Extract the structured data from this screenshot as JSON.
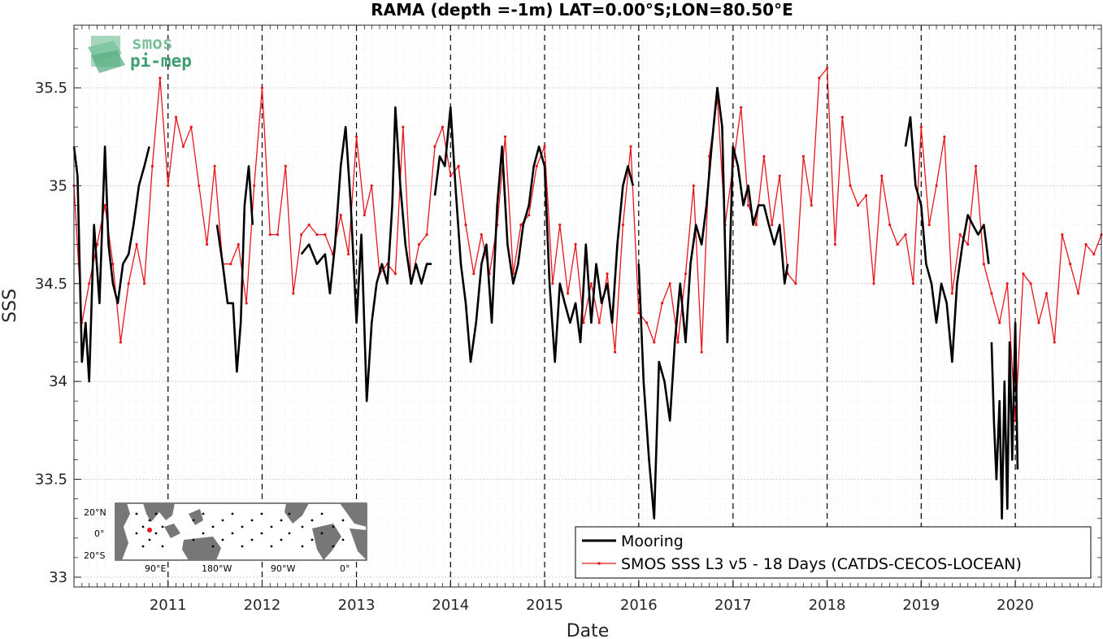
{
  "chart_data": {
    "type": "line",
    "title": "RAMA (depth =-1m) LAT=0.00°S;LON=80.50°E",
    "xlabel": "Date",
    "ylabel": "SSS",
    "xlim": [
      "2010-01-01",
      "2020-11-30"
    ],
    "ylim": [
      32.95,
      35.82
    ],
    "x_ticks": [
      "2011",
      "2012",
      "2013",
      "2014",
      "2015",
      "2016",
      "2017",
      "2018",
      "2019",
      "2020"
    ],
    "y_ticks": [
      "33",
      "33.5",
      "34",
      "34.5",
      "35",
      "35.5"
    ],
    "grid": true,
    "minor_grid": true,
    "year_boundaries_dashed": true,
    "legend_position": "bottom-right",
    "series": [
      {
        "name": "Mooring",
        "color": "#000000",
        "style": "thick-line",
        "segments": [
          {
            "x": [
              "2010-01-01",
              "2010-01-15",
              "2010-02-01",
              "2010-02-15",
              "2010-03-01",
              "2010-03-20",
              "2010-04-10",
              "2010-05-01",
              "2010-05-15",
              "2010-06-01",
              "2010-06-20",
              "2010-07-10",
              "2010-08-01",
              "2010-08-20",
              "2010-09-10",
              "2010-10-01",
              "2010-10-20"
            ],
            "y": [
              35.2,
              35.05,
              34.1,
              34.3,
              34.0,
              34.8,
              34.4,
              35.2,
              34.7,
              34.5,
              34.4,
              34.6,
              34.65,
              34.8,
              35.0,
              35.1,
              35.2
            ]
          },
          {
            "x": [
              "2011-07-10",
              "2011-08-01",
              "2011-08-20",
              "2011-09-10",
              "2011-09-25",
              "2011-10-10",
              "2011-10-25",
              "2011-11-10",
              "2011-11-25"
            ],
            "y": [
              34.8,
              34.6,
              34.4,
              34.4,
              34.05,
              34.3,
              34.9,
              35.1,
              34.8
            ]
          },
          {
            "x": [
              "2012-06-01",
              "2012-07-01",
              "2012-08-01",
              "2012-09-01",
              "2012-09-20",
              "2012-10-10",
              "2012-11-01",
              "2012-11-20",
              "2012-12-10",
              "2013-01-01",
              "2013-01-20",
              "2013-02-10",
              "2013-03-01",
              "2013-03-20",
              "2013-04-10",
              "2013-05-01",
              "2013-05-20",
              "2013-06-01",
              "2013-06-20",
              "2013-07-10",
              "2013-08-01",
              "2013-08-20",
              "2013-09-10",
              "2013-10-01",
              "2013-10-20"
            ],
            "y": [
              34.65,
              34.7,
              34.6,
              34.65,
              34.45,
              34.7,
              35.1,
              35.3,
              34.9,
              34.3,
              34.75,
              33.9,
              34.3,
              34.5,
              34.6,
              34.5,
              34.9,
              35.4,
              35.0,
              34.7,
              34.5,
              34.6,
              34.5,
              34.6,
              34.6
            ]
          },
          {
            "x": [
              "2013-11-01",
              "2013-11-20",
              "2013-12-10",
              "2014-01-01",
              "2014-01-20",
              "2014-02-10",
              "2014-03-01",
              "2014-03-20",
              "2014-04-10",
              "2014-05-01",
              "2014-05-20",
              "2014-06-10",
              "2014-07-01",
              "2014-07-20",
              "2014-08-10",
              "2014-09-01",
              "2014-09-20",
              "2014-10-10",
              "2014-11-01",
              "2014-11-20",
              "2014-12-10",
              "2015-01-01",
              "2015-01-20",
              "2015-02-10",
              "2015-03-01",
              "2015-03-20",
              "2015-04-10",
              "2015-05-01",
              "2015-05-20",
              "2015-06-10",
              "2015-07-01",
              "2015-07-20",
              "2015-08-10",
              "2015-09-01",
              "2015-09-20",
              "2015-10-10",
              "2015-11-01",
              "2015-11-20",
              "2015-12-10"
            ],
            "y": [
              34.95,
              35.15,
              35.1,
              35.4,
              35.0,
              34.6,
              34.4,
              34.1,
              34.3,
              34.6,
              34.7,
              34.3,
              34.9,
              35.2,
              34.7,
              34.5,
              34.6,
              34.8,
              34.9,
              35.1,
              35.2,
              35.1,
              34.5,
              34.1,
              34.5,
              34.4,
              34.3,
              34.4,
              34.2,
              34.7,
              34.3,
              34.6,
              34.4,
              34.5,
              34.3,
              34.7,
              35.0,
              35.1,
              35.0
            ]
          },
          {
            "x": [
              "2016-01-01",
              "2016-01-20",
              "2016-02-10",
              "2016-03-01",
              "2016-03-20",
              "2016-04-10",
              "2016-05-01",
              "2016-05-20",
              "2016-06-10",
              "2016-07-01",
              "2016-07-20",
              "2016-08-10",
              "2016-09-01",
              "2016-09-20",
              "2016-10-10",
              "2016-11-01",
              "2016-11-20",
              "2016-12-10",
              "2017-01-01",
              "2017-01-20",
              "2017-02-10",
              "2017-03-01",
              "2017-03-20",
              "2017-04-10",
              "2017-05-01",
              "2017-05-20",
              "2017-06-10",
              "2017-07-01",
              "2017-07-20",
              "2017-08-01"
            ],
            "y": [
              34.6,
              34.0,
              33.6,
              33.3,
              34.1,
              34.0,
              33.8,
              34.2,
              34.5,
              34.2,
              34.6,
              34.8,
              34.7,
              34.9,
              35.2,
              35.5,
              35.3,
              34.2,
              35.2,
              35.1,
              34.9,
              35.0,
              34.8,
              34.9,
              34.9,
              34.8,
              34.7,
              34.8,
              34.5,
              34.6
            ]
          },
          {
            "x": [
              "2018-11-01",
              "2018-11-20",
              "2018-12-10",
              "2019-01-01",
              "2019-01-20",
              "2019-02-10",
              "2019-03-01",
              "2019-03-20",
              "2019-04-10",
              "2019-05-01",
              "2019-05-20",
              "2019-06-10",
              "2019-07-01",
              "2019-07-20",
              "2019-08-10",
              "2019-09-01",
              "2019-09-20"
            ],
            "y": [
              35.2,
              35.35,
              35.0,
              34.9,
              34.6,
              34.5,
              34.3,
              34.5,
              34.4,
              34.1,
              34.5,
              34.7,
              34.85,
              34.8,
              34.75,
              34.8,
              34.6
            ]
          },
          {
            "x": [
              "2019-10-01",
              "2019-10-10",
              "2019-10-20",
              "2019-11-01",
              "2019-11-10",
              "2019-11-20",
              "2019-12-01",
              "2019-12-10",
              "2019-12-20",
              "2020-01-01",
              "2020-01-10"
            ],
            "y": [
              34.2,
              33.8,
              33.5,
              33.9,
              33.3,
              34.0,
              33.35,
              34.2,
              33.6,
              34.3,
              33.55
            ]
          }
        ]
      },
      {
        "name": "SMOS SSS L3 v5 - 18 Days (CATDS-CECOS-LOCEAN)",
        "color": "#e8161b",
        "style": "line-with-dots",
        "x": [
          "2010-01-01",
          "2010-02-01",
          "2010-03-01",
          "2010-04-01",
          "2010-05-01",
          "2010-06-01",
          "2010-07-01",
          "2010-08-01",
          "2010-09-01",
          "2010-10-01",
          "2010-11-01",
          "2010-12-01",
          "2011-01-01",
          "2011-02-01",
          "2011-03-01",
          "2011-04-01",
          "2011-05-01",
          "2011-06-01",
          "2011-07-01",
          "2011-08-01",
          "2011-09-01",
          "2011-10-01",
          "2011-11-01",
          "2011-12-01",
          "2012-01-01",
          "2012-02-01",
          "2012-03-01",
          "2012-04-01",
          "2012-05-01",
          "2012-06-01",
          "2012-07-01",
          "2012-08-01",
          "2012-09-01",
          "2012-10-01",
          "2012-11-01",
          "2012-12-01",
          "2013-01-01",
          "2013-02-01",
          "2013-03-01",
          "2013-04-01",
          "2013-05-01",
          "2013-06-01",
          "2013-07-01",
          "2013-08-01",
          "2013-09-01",
          "2013-10-01",
          "2013-11-01",
          "2013-12-01",
          "2014-01-01",
          "2014-02-01",
          "2014-03-01",
          "2014-04-01",
          "2014-05-01",
          "2014-06-01",
          "2014-07-01",
          "2014-08-01",
          "2014-09-01",
          "2014-10-01",
          "2014-11-01",
          "2014-12-01",
          "2015-01-01",
          "2015-02-01",
          "2015-03-01",
          "2015-04-01",
          "2015-05-01",
          "2015-06-01",
          "2015-07-01",
          "2015-08-01",
          "2015-09-01",
          "2015-10-01",
          "2015-11-01",
          "2015-12-01",
          "2016-01-01",
          "2016-02-01",
          "2016-03-01",
          "2016-04-01",
          "2016-05-01",
          "2016-06-01",
          "2016-07-01",
          "2016-08-01",
          "2016-09-01",
          "2016-10-01",
          "2016-11-01",
          "2016-12-01",
          "2017-01-01",
          "2017-02-01",
          "2017-03-01",
          "2017-04-01",
          "2017-05-01",
          "2017-06-01",
          "2017-07-01",
          "2017-08-01",
          "2017-09-01",
          "2017-10-01",
          "2017-11-01",
          "2017-12-01",
          "2018-01-01",
          "2018-02-01",
          "2018-03-01",
          "2018-04-01",
          "2018-05-01",
          "2018-06-01",
          "2018-07-01",
          "2018-08-01",
          "2018-09-01",
          "2018-10-01",
          "2018-11-01",
          "2018-12-01",
          "2019-01-01",
          "2019-02-01",
          "2019-03-01",
          "2019-04-01",
          "2019-05-01",
          "2019-06-01",
          "2019-07-01",
          "2019-08-01",
          "2019-09-01",
          "2019-10-01",
          "2019-11-01",
          "2019-12-01",
          "2020-01-01",
          "2020-02-01",
          "2020-03-01",
          "2020-04-01",
          "2020-05-01",
          "2020-06-01",
          "2020-07-01",
          "2020-08-01",
          "2020-09-01",
          "2020-10-01",
          "2020-11-01",
          "2020-11-30"
        ],
        "y": [
          35.0,
          34.3,
          34.5,
          34.7,
          34.9,
          34.6,
          34.2,
          34.5,
          34.7,
          34.5,
          35.1,
          35.55,
          35.0,
          35.35,
          35.2,
          35.3,
          35.0,
          34.7,
          35.1,
          34.6,
          34.6,
          34.7,
          34.4,
          35.0,
          35.5,
          34.75,
          34.75,
          35.1,
          34.45,
          34.75,
          34.8,
          34.75,
          34.75,
          34.65,
          34.85,
          34.65,
          35.25,
          34.85,
          35.0,
          34.55,
          34.6,
          34.55,
          35.3,
          34.5,
          34.7,
          34.75,
          35.2,
          35.3,
          35.05,
          35.1,
          34.8,
          34.55,
          34.75,
          34.55,
          34.8,
          35.25,
          34.55,
          34.8,
          34.85,
          35.1,
          35.2,
          34.5,
          34.8,
          34.45,
          34.7,
          34.3,
          34.5,
          34.3,
          34.55,
          34.15,
          34.8,
          35.2,
          34.35,
          34.3,
          34.2,
          34.4,
          34.5,
          34.2,
          34.55,
          35.0,
          34.15,
          35.15,
          35.45,
          34.8,
          35.1,
          35.4,
          34.9,
          34.8,
          35.15,
          34.8,
          35.05,
          34.55,
          34.5,
          35.15,
          34.9,
          35.55,
          35.6,
          34.7,
          35.35,
          35.0,
          34.9,
          34.95,
          34.5,
          35.05,
          34.8,
          34.7,
          34.75,
          34.5,
          35.3,
          34.8,
          35.0,
          35.25,
          34.45,
          34.75,
          34.7,
          35.1,
          34.6,
          34.45,
          34.3,
          34.5,
          33.8,
          34.55,
          34.5,
          34.3,
          34.45,
          34.2,
          34.75,
          34.6,
          34.45,
          34.7,
          34.65,
          34.75
        ]
      }
    ]
  },
  "logo": {
    "line1": "smos",
    "line2": "pi-mep"
  },
  "inset_map": {
    "lat_labels": [
      "20°N",
      "0°",
      "20°S"
    ],
    "lon_labels": [
      "90°E",
      "180°W",
      "90°W",
      "0°"
    ]
  }
}
